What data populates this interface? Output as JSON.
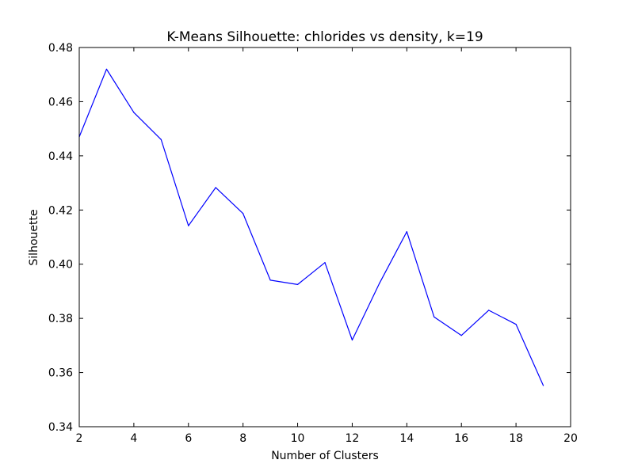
{
  "chart_data": {
    "type": "line",
    "title": "K-Means Silhouette: chlorides vs density, k=19",
    "xlabel": "Number of Clusters",
    "ylabel": "Silhouette",
    "xlim": [
      2,
      20
    ],
    "ylim": [
      0.34,
      0.48
    ],
    "xticks": [
      2,
      4,
      6,
      8,
      10,
      12,
      14,
      16,
      18,
      20
    ],
    "yticks": [
      0.34,
      0.36,
      0.38,
      0.4,
      0.42,
      0.44,
      0.46,
      0.48
    ],
    "xtick_labels": [
      "2",
      "4",
      "6",
      "8",
      "10",
      "12",
      "14",
      "16",
      "18",
      "20"
    ],
    "ytick_labels": [
      "0.34",
      "0.36",
      "0.38",
      "0.40",
      "0.42",
      "0.44",
      "0.46",
      "0.48"
    ],
    "grid": false,
    "legend": false,
    "series": [
      {
        "color": "#0000ff",
        "x": [
          2,
          3,
          4,
          5,
          6,
          7,
          8,
          9,
          10,
          11,
          12,
          13,
          14,
          15,
          16,
          17,
          18,
          19
        ],
        "y": [
          0.447,
          0.472,
          0.456,
          0.446,
          0.4142,
          0.4283,
          0.4187,
          0.3941,
          0.3925,
          0.4006,
          0.372,
          0.393,
          0.412,
          0.3805,
          0.3737,
          0.383,
          0.3778,
          0.3552
        ]
      }
    ]
  }
}
